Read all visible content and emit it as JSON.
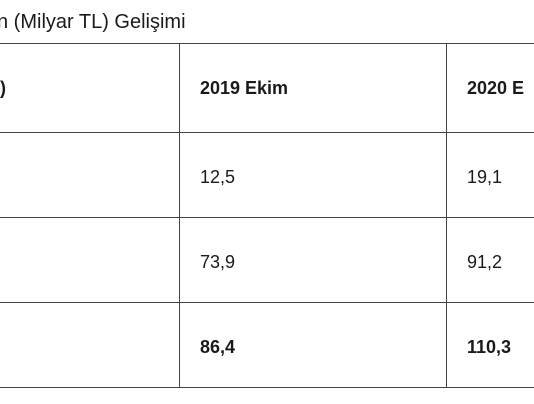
{
  "title": "n (Milyar TL) Gelişimi",
  "table": {
    "header": [
      ")",
      "2019 Ekim",
      "2020 E"
    ],
    "rows": [
      [
        "12,5",
        "19,1"
      ],
      [
        "73,9",
        "91,2"
      ],
      [
        "86,4",
        "110,3"
      ]
    ]
  }
}
